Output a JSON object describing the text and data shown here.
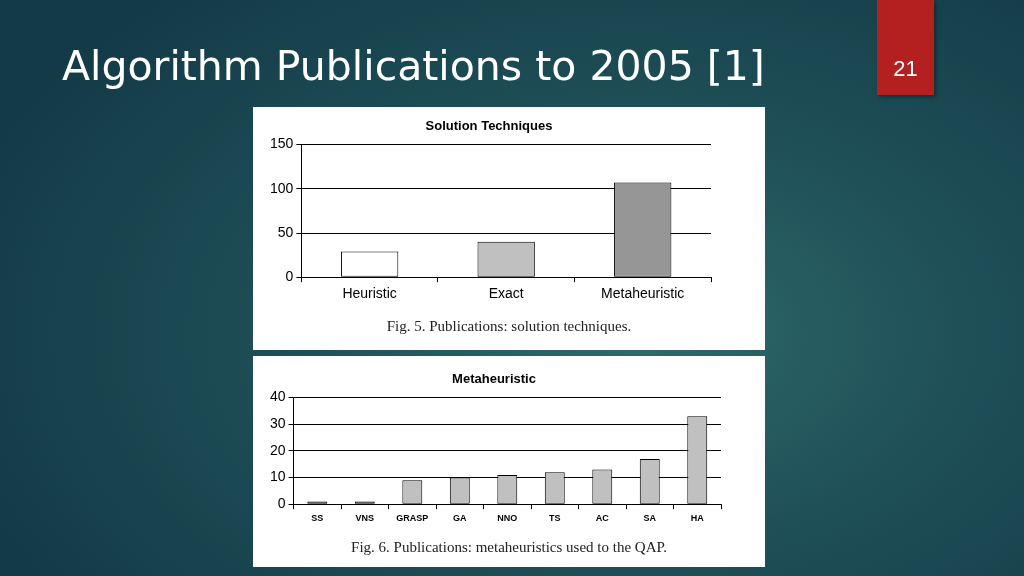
{
  "chart_data": [
    {
      "type": "bar",
      "title": "Solution Techniques",
      "categories": [
        "Heuristic",
        "Exact",
        "Metaheuristic"
      ],
      "values": [
        29,
        40,
        107
      ],
      "colors": [
        "#ffffff",
        "#c0c0c0",
        "#969696"
      ],
      "ylim": [
        0,
        150
      ],
      "yticks": [
        0,
        50,
        100,
        150
      ],
      "grid": "y",
      "annotations": [
        "Algorithm Publications to 2005 [1]",
        "21",
        "Fig. 5. Publications: solution techniques."
      ]
    },
    {
      "type": "bar",
      "title": "Metaheuristic",
      "categories": [
        "SS",
        "VNS",
        "GRASP",
        "GA",
        "NNO",
        "TS",
        "AC",
        "SA",
        "HA"
      ],
      "values": [
        1,
        1,
        9,
        10,
        11,
        12,
        13,
        17,
        33
      ],
      "color": "#c0c0c0",
      "ylim": [
        0,
        40
      ],
      "yticks": [
        0,
        10,
        20,
        30,
        40
      ],
      "grid": "y",
      "annotations": [
        "Fig. 6. Publications: metaheuristics used to the QAP."
      ]
    }
  ]
}
